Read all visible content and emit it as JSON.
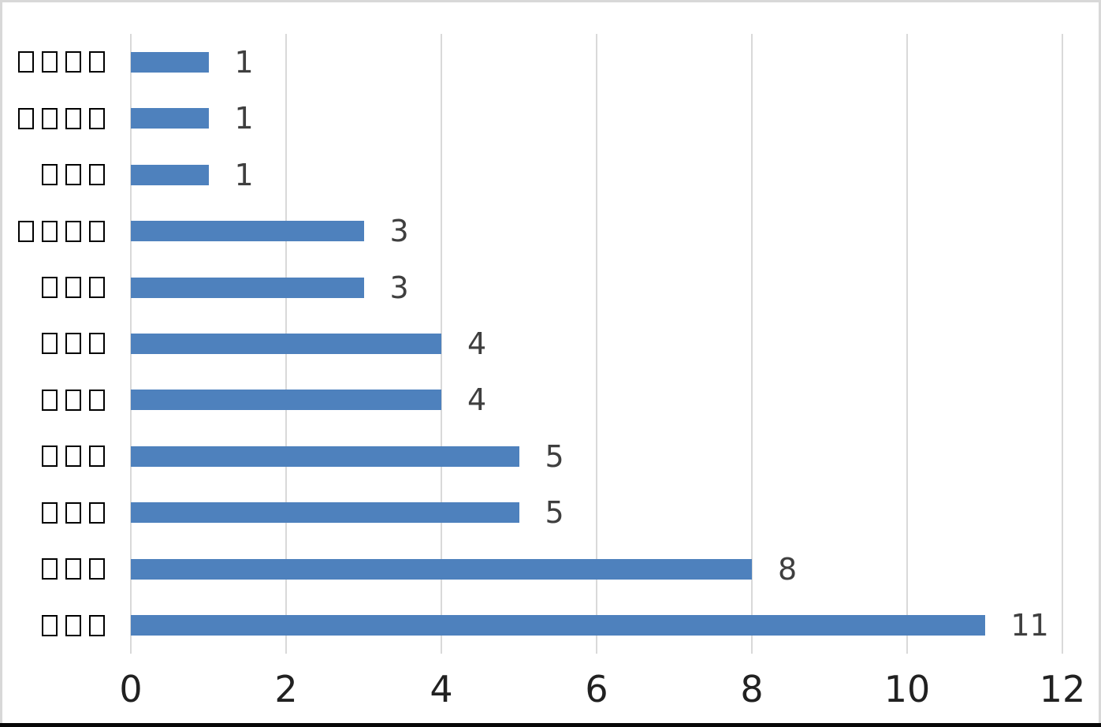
{
  "chart_data": {
    "type": "bar",
    "orientation": "horizontal",
    "title": "",
    "legend": false,
    "grid": true,
    "xlim": [
      0,
      12
    ],
    "x_ticks": [
      "0",
      "2",
      "4",
      "6",
      "8",
      "10",
      "12"
    ],
    "x_tick_values": [
      0,
      2,
      4,
      6,
      8,
      10,
      12
    ],
    "categories": [
      "□□□□",
      "□□□□",
      "□□□",
      "□□□□",
      "□□□",
      "□□□",
      "□□□",
      "□□□",
      "□□□",
      "□□□",
      "□□□"
    ],
    "values": [
      1,
      1,
      1,
      3,
      3,
      4,
      4,
      5,
      5,
      8,
      11
    ],
    "data_labels": [
      "1",
      "1",
      "1",
      "3",
      "3",
      "4",
      "4",
      "5",
      "5",
      "8",
      "11"
    ],
    "colors": {
      "bar": "#4E81BD",
      "gridline": "#D9D9D9",
      "data_label": "#3F3F3F",
      "axis_label": "#212121",
      "category_glyph_border": "#000000",
      "chart_border": "#D8D8D8",
      "bottom_edge": "#070707"
    }
  }
}
